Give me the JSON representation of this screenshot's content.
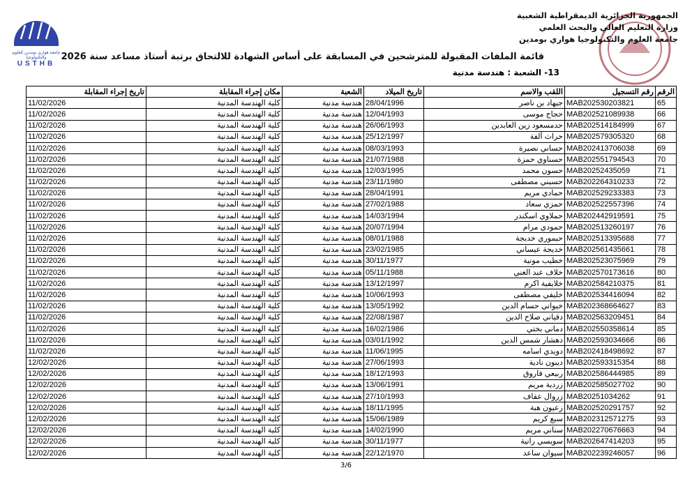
{
  "header": {
    "lines": [
      "الجمهورية الجزائرية الديمقراطية الشعبية",
      "وزارة التعليم العالي والبحث العلمي",
      "جامعة العلوم والتكنولوجيا هواري بومدين"
    ],
    "title": "قائمة الملفات المقبولة للمترشحين  في المسابقة على أساس الشهادة للالتحاق برتبة أستاذ مساعد سنة 2026",
    "subtitle": "13-  الشعبة : هندسة مدنية"
  },
  "logo": {
    "arabic": "جامعة هواري بومدين للعلوم والتكنولوجيا",
    "text": "USTHB"
  },
  "table": {
    "columns": [
      "الرقم",
      "رقم التسجيل",
      "اللقب والاسم",
      "تاريخ الميلاد",
      "الشعبة",
      "مكان إجراء المقابلة",
      "تاريخ إجراء المقابلة"
    ],
    "rows": [
      [
        "65",
        "MAB202530203821",
        "جيهاد بن ناصر",
        "28/04/1996",
        "هندسة مدنية",
        "كلية الهندسة المدنية",
        "11/02/2026"
      ],
      [
        "66",
        "MAB202521089938",
        "حجاج موسى",
        "12/04/1993",
        "هندسة مدنية",
        "كلية الهندسة المدنية",
        "11/02/2026"
      ],
      [
        "67",
        "MAB202514184999",
        "حدمسعود زين العابدين",
        "26/06/1993",
        "هندسة مدنية",
        "كلية الهندسة المدنية",
        "11/02/2026"
      ],
      [
        "68",
        "MAB202579305320",
        "حراث ألفة",
        "25/12/1997",
        "هندسة مدنية",
        "كلية الهندسة المدنية",
        "11/02/2026"
      ],
      [
        "69",
        "MAB202413706038",
        "حساني  نصيرة",
        "08/03/1993",
        "هندسة مدنية",
        "كلية الهندسة المدنية",
        "11/02/2026"
      ],
      [
        "70",
        "MAB202551794543",
        "حسناوي حمزة",
        "21/07/1988",
        "هندسة مدنية",
        "كلية الهندسة المدنية",
        "11/02/2026"
      ],
      [
        "71",
        "MAB20252435059",
        "حسون محمد",
        "12/03/1995",
        "هندسة مدنية",
        "كلية الهندسة المدنية",
        "11/02/2026"
      ],
      [
        "72",
        "MAB202264310233",
        "حسيني  مصطفى",
        "23/11/1980",
        "هندسة مدنية",
        "كلية الهندسة المدنية",
        "11/02/2026"
      ],
      [
        "73",
        "MAB202529233383",
        "حمادي مريم",
        "28/04/1991",
        "هندسة مدنية",
        "كلية الهندسة المدنية",
        "11/02/2026"
      ],
      [
        "74",
        "MAB202522557396",
        "حمزي سعاد",
        "27/02/1988",
        "هندسة مدنية",
        "كلية الهندسة المدنية",
        "11/02/2026"
      ],
      [
        "75",
        "MAB202442919591",
        "حملاوي اسكندر",
        "14/03/1994",
        "هندسة مدنية",
        "كلية الهندسة المدنية",
        "11/02/2026"
      ],
      [
        "76",
        "MAB202513260197",
        "حمودي مرام",
        "20/07/1994",
        "هندسة مدنية",
        "كلية الهندسة المدنية",
        "11/02/2026"
      ],
      [
        "77",
        "MAB202513395688",
        "حيموري خديجة",
        "08/01/1988",
        "هندسة مدنية",
        "كلية الهندسة المدنية",
        "11/02/2026"
      ],
      [
        "78",
        "MAB202561435661",
        "خديجة عيساني",
        "23/02/1985",
        "هندسة مدنية",
        "كلية الهندسة المدنية",
        "11/02/2026"
      ],
      [
        "79",
        "MAB202523075969",
        "خطيب مونية",
        "30/11/1977",
        "هندسة مدنية",
        "كلية الهندسة المدنية",
        "11/02/2026"
      ],
      [
        "80",
        "MAB202570173616",
        "خلاف عبد الغني",
        "05/11/1988",
        "هندسة مدنية",
        "كلية الهندسة المدنية",
        "11/02/2026"
      ],
      [
        "81",
        "MAB202584210375",
        "خلايفية اكرم",
        "13/12/1997",
        "هندسة مدنية",
        "كلية الهندسة المدنية",
        "11/02/2026"
      ],
      [
        "82",
        "MAB202534416094",
        "خليفي مصطفى",
        "10/06/1993",
        "هندسة مدنية",
        "كلية الهندسة المدنية",
        "11/02/2026"
      ],
      [
        "83",
        "MAB202368664627",
        "خيواني حسام الدين",
        "13/05/1992",
        "هندسة مدنية",
        "كلية الهندسة المدنية",
        "11/02/2026"
      ],
      [
        "84",
        "MAB202563209451",
        "دقياني صلاح الدين",
        "22/08/1987",
        "هندسة مدنية",
        "كلية الهندسة المدنية",
        "11/02/2026"
      ],
      [
        "85",
        "MAB202550358614",
        "دماني بختي",
        "16/02/1986",
        "هندسة مدنية",
        "كلية الهندسة المدنية",
        "11/02/2026"
      ],
      [
        "86",
        "MAB202593034666",
        "دهشار شمس الدين",
        "03/01/1992",
        "هندسة مدنية",
        "كلية الهندسة المدنية",
        "11/02/2026"
      ],
      [
        "87",
        "MAB202418498692",
        "دويدي  اسامه",
        "11/06/1995",
        "هندسة مدنية",
        "كلية الهندسة المدنية",
        "11/02/2026"
      ],
      [
        "88",
        "MAB202593315354",
        "ديبون نادية",
        "27/06/1993",
        "هندسة مدنية",
        "كلية الهندسة المدنية",
        "12/02/2026"
      ],
      [
        "89",
        "MAB202586444985",
        "ربيعي فاروق",
        "18/12/1993",
        "هندسة مدنية",
        "كلية الهندسة المدنية",
        "12/02/2026"
      ],
      [
        "90",
        "MAB202585027702",
        "زردية مريم",
        "13/06/1991",
        "هندسة مدنية",
        "كلية الهندسة المدنية",
        "12/02/2026"
      ],
      [
        "91",
        "MAB20251034262",
        "زروال عفاف",
        "27/10/1993",
        "هندسة مدنية",
        "كلية الهندسة المدنية",
        "12/02/2026"
      ],
      [
        "92",
        "MAB202520291757",
        "زعيون هبة",
        "18/11/1995",
        "هندسة مدنية",
        "كلية الهندسة المدنية",
        "12/02/2026"
      ],
      [
        "93",
        "MAB202312571275",
        "سبع كريم",
        "15/06/1989",
        "هندسة مدنية",
        "كلية الهندسة المدنية",
        "12/02/2026"
      ],
      [
        "94",
        "MAB202270676663",
        "سناني مريم",
        "14/02/1990",
        "هندسة مدنية",
        "كلية الهندسة المدنية",
        "12/02/2026"
      ],
      [
        "95",
        "MAB202647414203",
        "سويسي رانية",
        "30/11/1977",
        "هندسة مدنية",
        "كلية الهندسة المدنية",
        "12/02/2026"
      ],
      [
        "96",
        "MAB202239246057",
        "سيوان ساعد",
        "22/12/1970",
        "هندسة مدنية",
        "كلية الهندسة المدنية",
        "12/02/2026"
      ]
    ]
  },
  "footer": {
    "page": "3/6"
  },
  "colors": {
    "logo": "#2f44a6",
    "stamp": "#9b1b2a"
  }
}
